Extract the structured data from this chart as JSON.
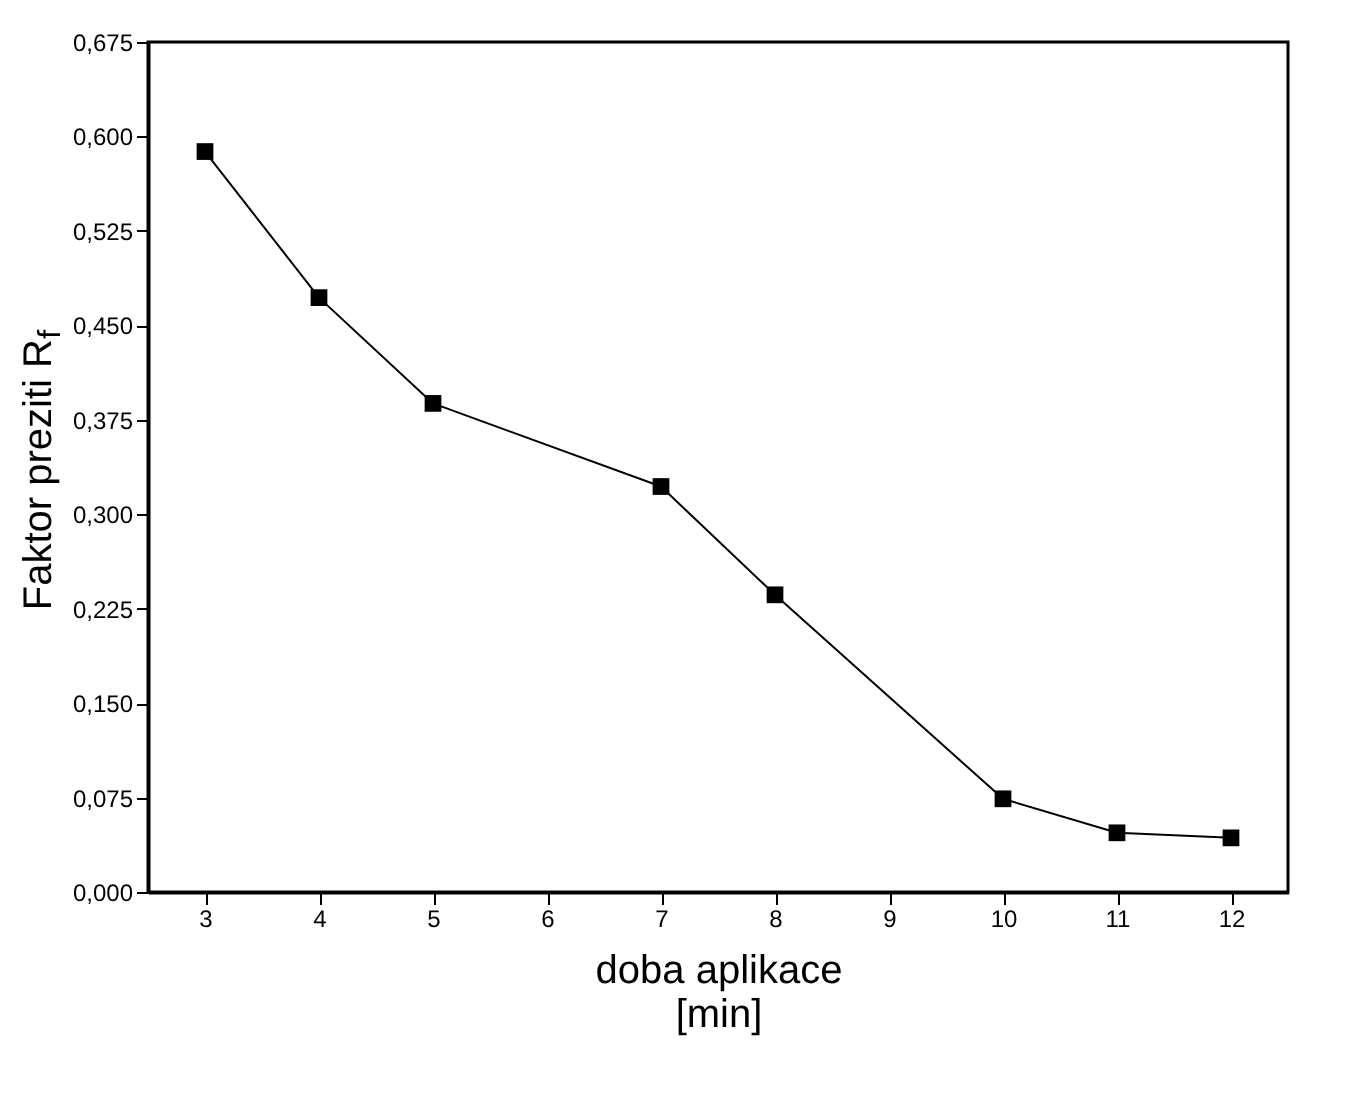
{
  "chart_data": {
    "type": "line",
    "xlabel": "doba aplikace\n[min]",
    "ylabel": "Faktor preziti R$_{f}$",
    "x": [
      3,
      4,
      5,
      7,
      8,
      10,
      11,
      12
    ],
    "series": [
      {
        "color": "#000000",
        "values": [
          0.588,
          0.472,
          0.388,
          0.322,
          0.236,
          0.074,
          0.047,
          0.043
        ]
      }
    ],
    "xlim": [
      2.5,
      12.5
    ],
    "xticks": [
      3,
      4,
      5,
      6,
      7,
      8,
      9,
      10,
      11,
      12
    ],
    "ylim": [
      0,
      0.675
    ],
    "yticks": [
      {
        "value": 0,
        "label": "0,000"
      },
      {
        "value": 0.075,
        "label": "0,075"
      },
      {
        "value": 0.15,
        "label": "0,150"
      },
      {
        "value": 0.225,
        "label": "0,225"
      },
      {
        "value": 0.3,
        "label": "0,300"
      },
      {
        "value": 0.375,
        "label": "0,375"
      },
      {
        "value": 0.45,
        "label": "0,450"
      },
      {
        "value": 0.525,
        "label": "0,525"
      },
      {
        "value": 0.6,
        "label": "0,600"
      },
      {
        "value": 0.675,
        "label": "0,675"
      }
    ],
    "grid": false,
    "marker": "square",
    "line_style": "solid"
  }
}
